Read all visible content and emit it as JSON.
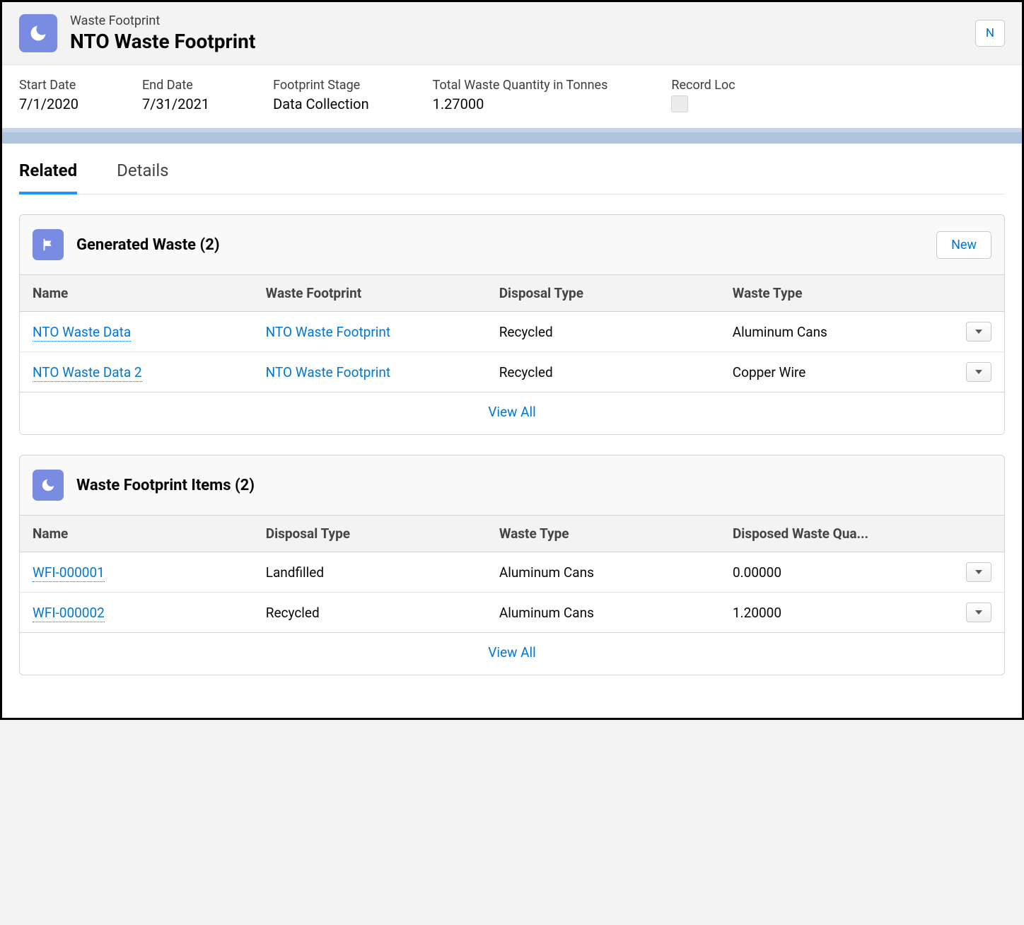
{
  "header": {
    "object_label": "Waste Footprint",
    "record_title": "NTO Waste Footprint",
    "right_button_fragment": "N"
  },
  "info": [
    {
      "label": "Start Date",
      "value": "7/1/2020"
    },
    {
      "label": "End Date",
      "value": "7/31/2021"
    },
    {
      "label": "Footprint Stage",
      "value": "Data Collection"
    },
    {
      "label": "Total Waste Quantity in Tonnes",
      "value": "1.27000"
    },
    {
      "label": "Record Loc",
      "value": "",
      "type": "checkbox"
    }
  ],
  "tabs": [
    {
      "label": "Related",
      "active": true
    },
    {
      "label": "Details",
      "active": false
    }
  ],
  "sections": [
    {
      "icon": "flag",
      "title": "Generated Waste (2)",
      "new_label": "New",
      "columns": [
        "Name",
        "Waste Footprint",
        "Disposal Type",
        "Waste Type"
      ],
      "rows": [
        {
          "name": "NTO Waste Data",
          "c2": "NTO Waste Footprint",
          "c3": "Recycled",
          "c4": "Aluminum Cans",
          "c2_link": true
        },
        {
          "name": "NTO Waste Data 2",
          "c2": "NTO Waste Footprint",
          "c3": "Recycled",
          "c4": "Copper Wire",
          "c2_link": true
        }
      ],
      "view_all": "View All"
    },
    {
      "icon": "moon",
      "title": "Waste Footprint Items (2)",
      "columns": [
        "Name",
        "Disposal Type",
        "Waste Type",
        "Disposed Waste Qua..."
      ],
      "rows": [
        {
          "name": "WFI-000001",
          "c2": "Landfilled",
          "c3": "Aluminum Cans",
          "c4": "0.00000"
        },
        {
          "name": "WFI-000002",
          "c2": "Recycled",
          "c3": "Aluminum Cans",
          "c4": "1.20000"
        }
      ],
      "view_all": "View All"
    }
  ]
}
